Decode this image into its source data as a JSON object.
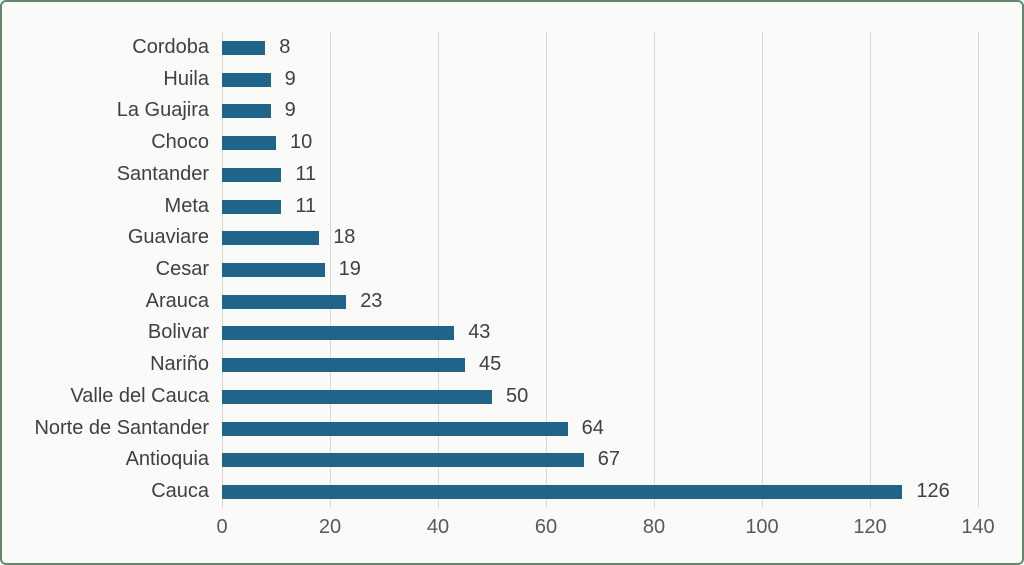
{
  "frame": {
    "background": "#FAFAF8",
    "border_color": "#648769"
  },
  "chart_data": {
    "type": "bar",
    "orientation": "horizontal",
    "title": "",
    "xlabel": "",
    "ylabel": "",
    "categories": [
      "Cordoba",
      "Huila",
      "La Guajira",
      "Choco",
      "Santander",
      "Meta",
      "Guaviare",
      "Cesar",
      "Arauca",
      "Bolivar",
      "Nariño",
      "Valle del Cauca",
      "Norte de Santander",
      "Antioquia",
      "Cauca"
    ],
    "values": [
      8,
      9,
      9,
      10,
      11,
      11,
      18,
      19,
      23,
      43,
      45,
      50,
      64,
      67,
      126
    ],
    "data_labels": [
      8,
      9,
      9,
      10,
      11,
      11,
      18,
      19,
      23,
      43,
      45,
      50,
      64,
      67,
      126
    ],
    "xlim": [
      0,
      140
    ],
    "x_ticks": [
      0,
      20,
      40,
      60,
      80,
      100,
      120,
      140
    ],
    "grid": "vertical",
    "legend": "none",
    "bar_color": "#20648A",
    "category_label_color": "#404040",
    "value_label_color": "#404040",
    "tick_label_color": "#595959",
    "gridline_color": "#D9D9D9"
  }
}
